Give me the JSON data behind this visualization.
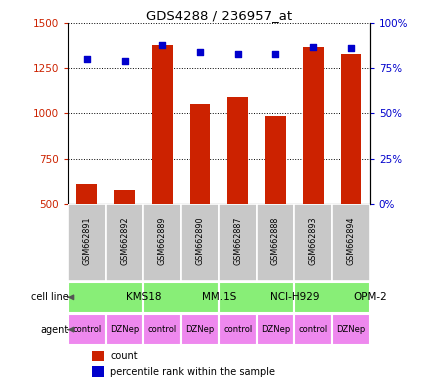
{
  "title": "GDS4288 / 236957_at",
  "samples": [
    "GSM662891",
    "GSM662892",
    "GSM662889",
    "GSM662890",
    "GSM662887",
    "GSM662888",
    "GSM662893",
    "GSM662894"
  ],
  "counts": [
    610,
    575,
    1380,
    1050,
    1090,
    985,
    1370,
    1330
  ],
  "percentile_ranks": [
    80,
    79,
    88,
    84,
    83,
    83,
    87,
    86
  ],
  "cell_lines": [
    {
      "name": "KMS18",
      "start": 0,
      "end": 2
    },
    {
      "name": "MM.1S",
      "start": 2,
      "end": 4
    },
    {
      "name": "NCI-H929",
      "start": 4,
      "end": 6
    },
    {
      "name": "OPM-2",
      "start": 6,
      "end": 8
    }
  ],
  "agents": [
    "control",
    "DZNep",
    "control",
    "DZNep",
    "control",
    "DZNep",
    "control",
    "DZNep"
  ],
  "bar_color": "#cc2200",
  "dot_color": "#0000cc",
  "cell_line_color": "#88ee77",
  "agent_color": "#ee88ee",
  "sample_bg_color": "#c8c8c8",
  "ylim_left": [
    500,
    1500
  ],
  "ylim_right": [
    0,
    100
  ],
  "yticks_left": [
    500,
    750,
    1000,
    1250,
    1500
  ],
  "yticks_right": [
    0,
    25,
    50,
    75,
    100
  ],
  "ytick_labels_right": [
    "0%",
    "25%",
    "50%",
    "75%",
    "100%"
  ],
  "bar_width": 0.55
}
